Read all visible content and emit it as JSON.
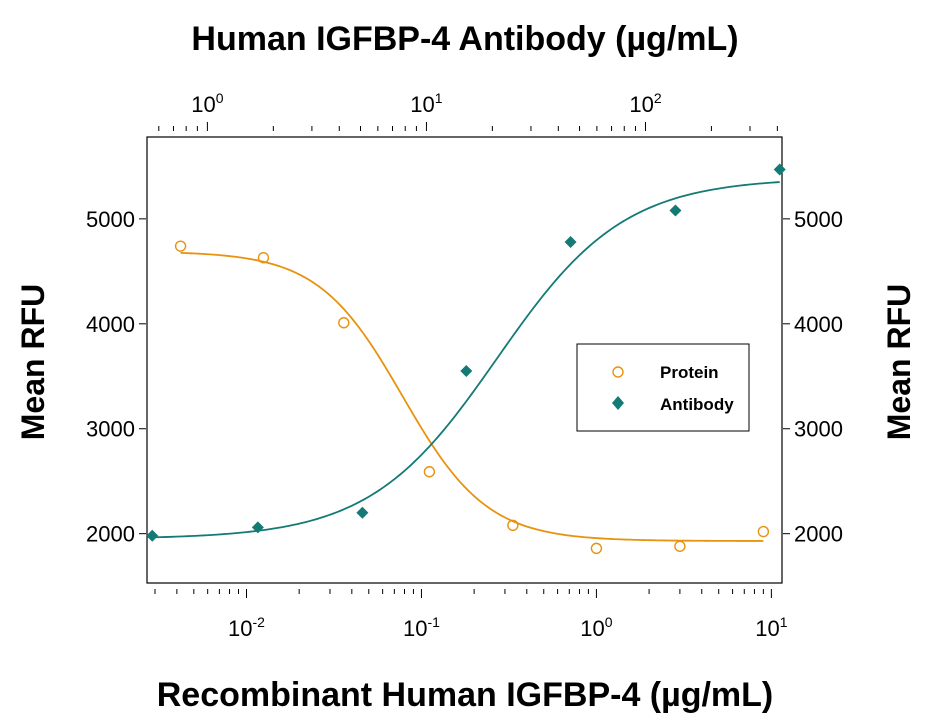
{
  "chart_data": {
    "type": "scatter",
    "title": "Human IGFBP-4 Antibody (µg/mL)",
    "xlabel": "Recombinant Human IGFBP-4 (µg/mL)",
    "ylabel": "Mean RFU",
    "ylabel_right": "Mean RFU",
    "x_scale": "log",
    "x_bottom_ticks": [
      {
        "value": 0.01,
        "base": "10",
        "exp": "-2"
      },
      {
        "value": 0.1,
        "base": "10",
        "exp": "-1"
      },
      {
        "value": 1,
        "base": "10",
        "exp": "0"
      },
      {
        "value": 10,
        "base": "10",
        "exp": "1"
      }
    ],
    "x_top_ticks": [
      {
        "value": 1,
        "base": "10",
        "exp": "0"
      },
      {
        "value": 10,
        "base": "10",
        "exp": "1"
      },
      {
        "value": 100,
        "base": "10",
        "exp": "2"
      }
    ],
    "y_left_ticks": [
      "2000",
      "3000",
      "4000",
      "5000"
    ],
    "y_right_ticks": [
      "2000",
      "3000",
      "4000",
      "5000"
    ],
    "y_left_range": [
      1530,
      5780
    ],
    "y_right_range": [
      1530,
      5780
    ],
    "x_bottom_range": [
      0.0027,
      11.5
    ],
    "x_top_range": [
      0.53,
      420
    ],
    "legend_placement": "center-right",
    "series": [
      {
        "name": "Protein",
        "axis": "bottom-left",
        "marker": "open-circle",
        "color": "#e8920f",
        "points": [
          {
            "x": 0.0042,
            "y": 4740
          },
          {
            "x": 0.0125,
            "y": 4630
          },
          {
            "x": 0.036,
            "y": 4010
          },
          {
            "x": 0.111,
            "y": 2590
          },
          {
            "x": 0.333,
            "y": 2080
          },
          {
            "x": 1.0,
            "y": 1860
          },
          {
            "x": 3.0,
            "y": 1880
          },
          {
            "x": 9.0,
            "y": 2020
          }
        ],
        "fit": {
          "bottom": 1930,
          "top": 4690,
          "ec50": 0.078,
          "hill": -1.8
        }
      },
      {
        "name": "Antibody",
        "axis": "top-right",
        "marker": "filled-diamond",
        "color": "#137a76",
        "points": [
          {
            "x": 0.56,
            "y": 1980
          },
          {
            "x": 1.7,
            "y": 2060
          },
          {
            "x": 5.1,
            "y": 2200
          },
          {
            "x": 15.2,
            "y": 3550
          },
          {
            "x": 45.5,
            "y": 4780
          },
          {
            "x": 137,
            "y": 5080
          },
          {
            "x": 410,
            "y": 5470
          }
        ],
        "fit": {
          "bottom": 1950,
          "top": 5390,
          "ec50": 21,
          "hill": 1.5
        }
      }
    ]
  }
}
